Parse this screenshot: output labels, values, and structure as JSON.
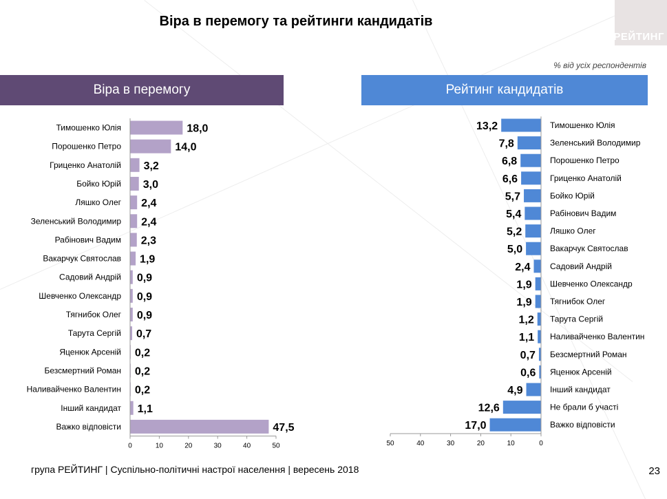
{
  "title": "Віра в перемогу та рейтинги кандидатів",
  "logo_text": "РЕЙТИНГ",
  "subtitle": "% від усіх респондентів",
  "footer": "група РЕЙТИНГ |  Суспільно-політичні настрої населення | вересень  2018",
  "page_number": "23",
  "colors": {
    "left_bar": "#b3a2c8",
    "right_bar": "#4f88d6",
    "left_band": "#5f4a74",
    "right_band": "#4f88d6"
  },
  "chart_data": [
    {
      "type": "bar",
      "title": "Віра в перемогу",
      "orientation": "horizontal",
      "categories": [
        "Тимошенко Юлія",
        "Порошенко Петро",
        "Гриценко Анатолій",
        "Бойко Юрій",
        "Ляшко Олег",
        "Зеленський Володимир",
        "Рабінович Вадим",
        "Вакарчук Святослав",
        "Садовий Андрій",
        "Шевченко Олександр",
        "Тягнибок Олег",
        "Тарута Сергій",
        "Яценюк Арсеній",
        "Безсмертний Роман",
        "Наливайченко Валентин",
        "Інший кандидат",
        "Важко відповісти"
      ],
      "values": [
        18.0,
        14.0,
        3.2,
        3.0,
        2.4,
        2.4,
        2.3,
        1.9,
        0.9,
        0.9,
        0.9,
        0.7,
        0.2,
        0.2,
        0.2,
        1.1,
        47.5
      ],
      "labels": [
        "18,0",
        "14,0",
        "3,2",
        "3,0",
        "2,4",
        "2,4",
        "2,3",
        "1,9",
        "0,9",
        "0,9",
        "0,9",
        "0,7",
        "0,2",
        "0,2",
        "0,2",
        "1,1",
        "47,5"
      ],
      "xlim": [
        0,
        50
      ],
      "ticks": [
        "0",
        "10",
        "20",
        "30",
        "40",
        "50"
      ]
    },
    {
      "type": "bar",
      "title": "Рейтинг кандидатів",
      "orientation": "horizontal",
      "reversed": true,
      "categories": [
        "Тимошенко Юлія",
        "Зеленський Володимир",
        "Порошенко Петро",
        "Гриценко Анатолій",
        "Бойко Юрій",
        "Рабінович Вадим",
        "Ляшко Олег",
        "Вакарчук Святослав",
        "Садовий Андрій",
        "Шевченко Олександр",
        "Тягнибок Олег",
        "Тарута Сергій",
        "Наливайченко Валентин",
        "Безсмертний Роман",
        "Яценюк Арсеній",
        "Інший кандидат",
        "Не брали б участі",
        "Важко відповісти"
      ],
      "values": [
        13.2,
        7.8,
        6.8,
        6.6,
        5.7,
        5.4,
        5.2,
        5.0,
        2.4,
        1.9,
        1.9,
        1.2,
        1.1,
        0.7,
        0.6,
        4.9,
        12.6,
        17.0
      ],
      "labels": [
        "13,2",
        "7,8",
        "6,8",
        "6,6",
        "5,7",
        "5,4",
        "5,2",
        "5,0",
        "2,4",
        "1,9",
        "1,9",
        "1,2",
        "1,1",
        "0,7",
        "0,6",
        "4,9",
        "12,6",
        "17,0"
      ],
      "xlim": [
        0,
        50
      ],
      "ticks": [
        "50",
        "40",
        "30",
        "20",
        "10",
        "0"
      ]
    }
  ]
}
